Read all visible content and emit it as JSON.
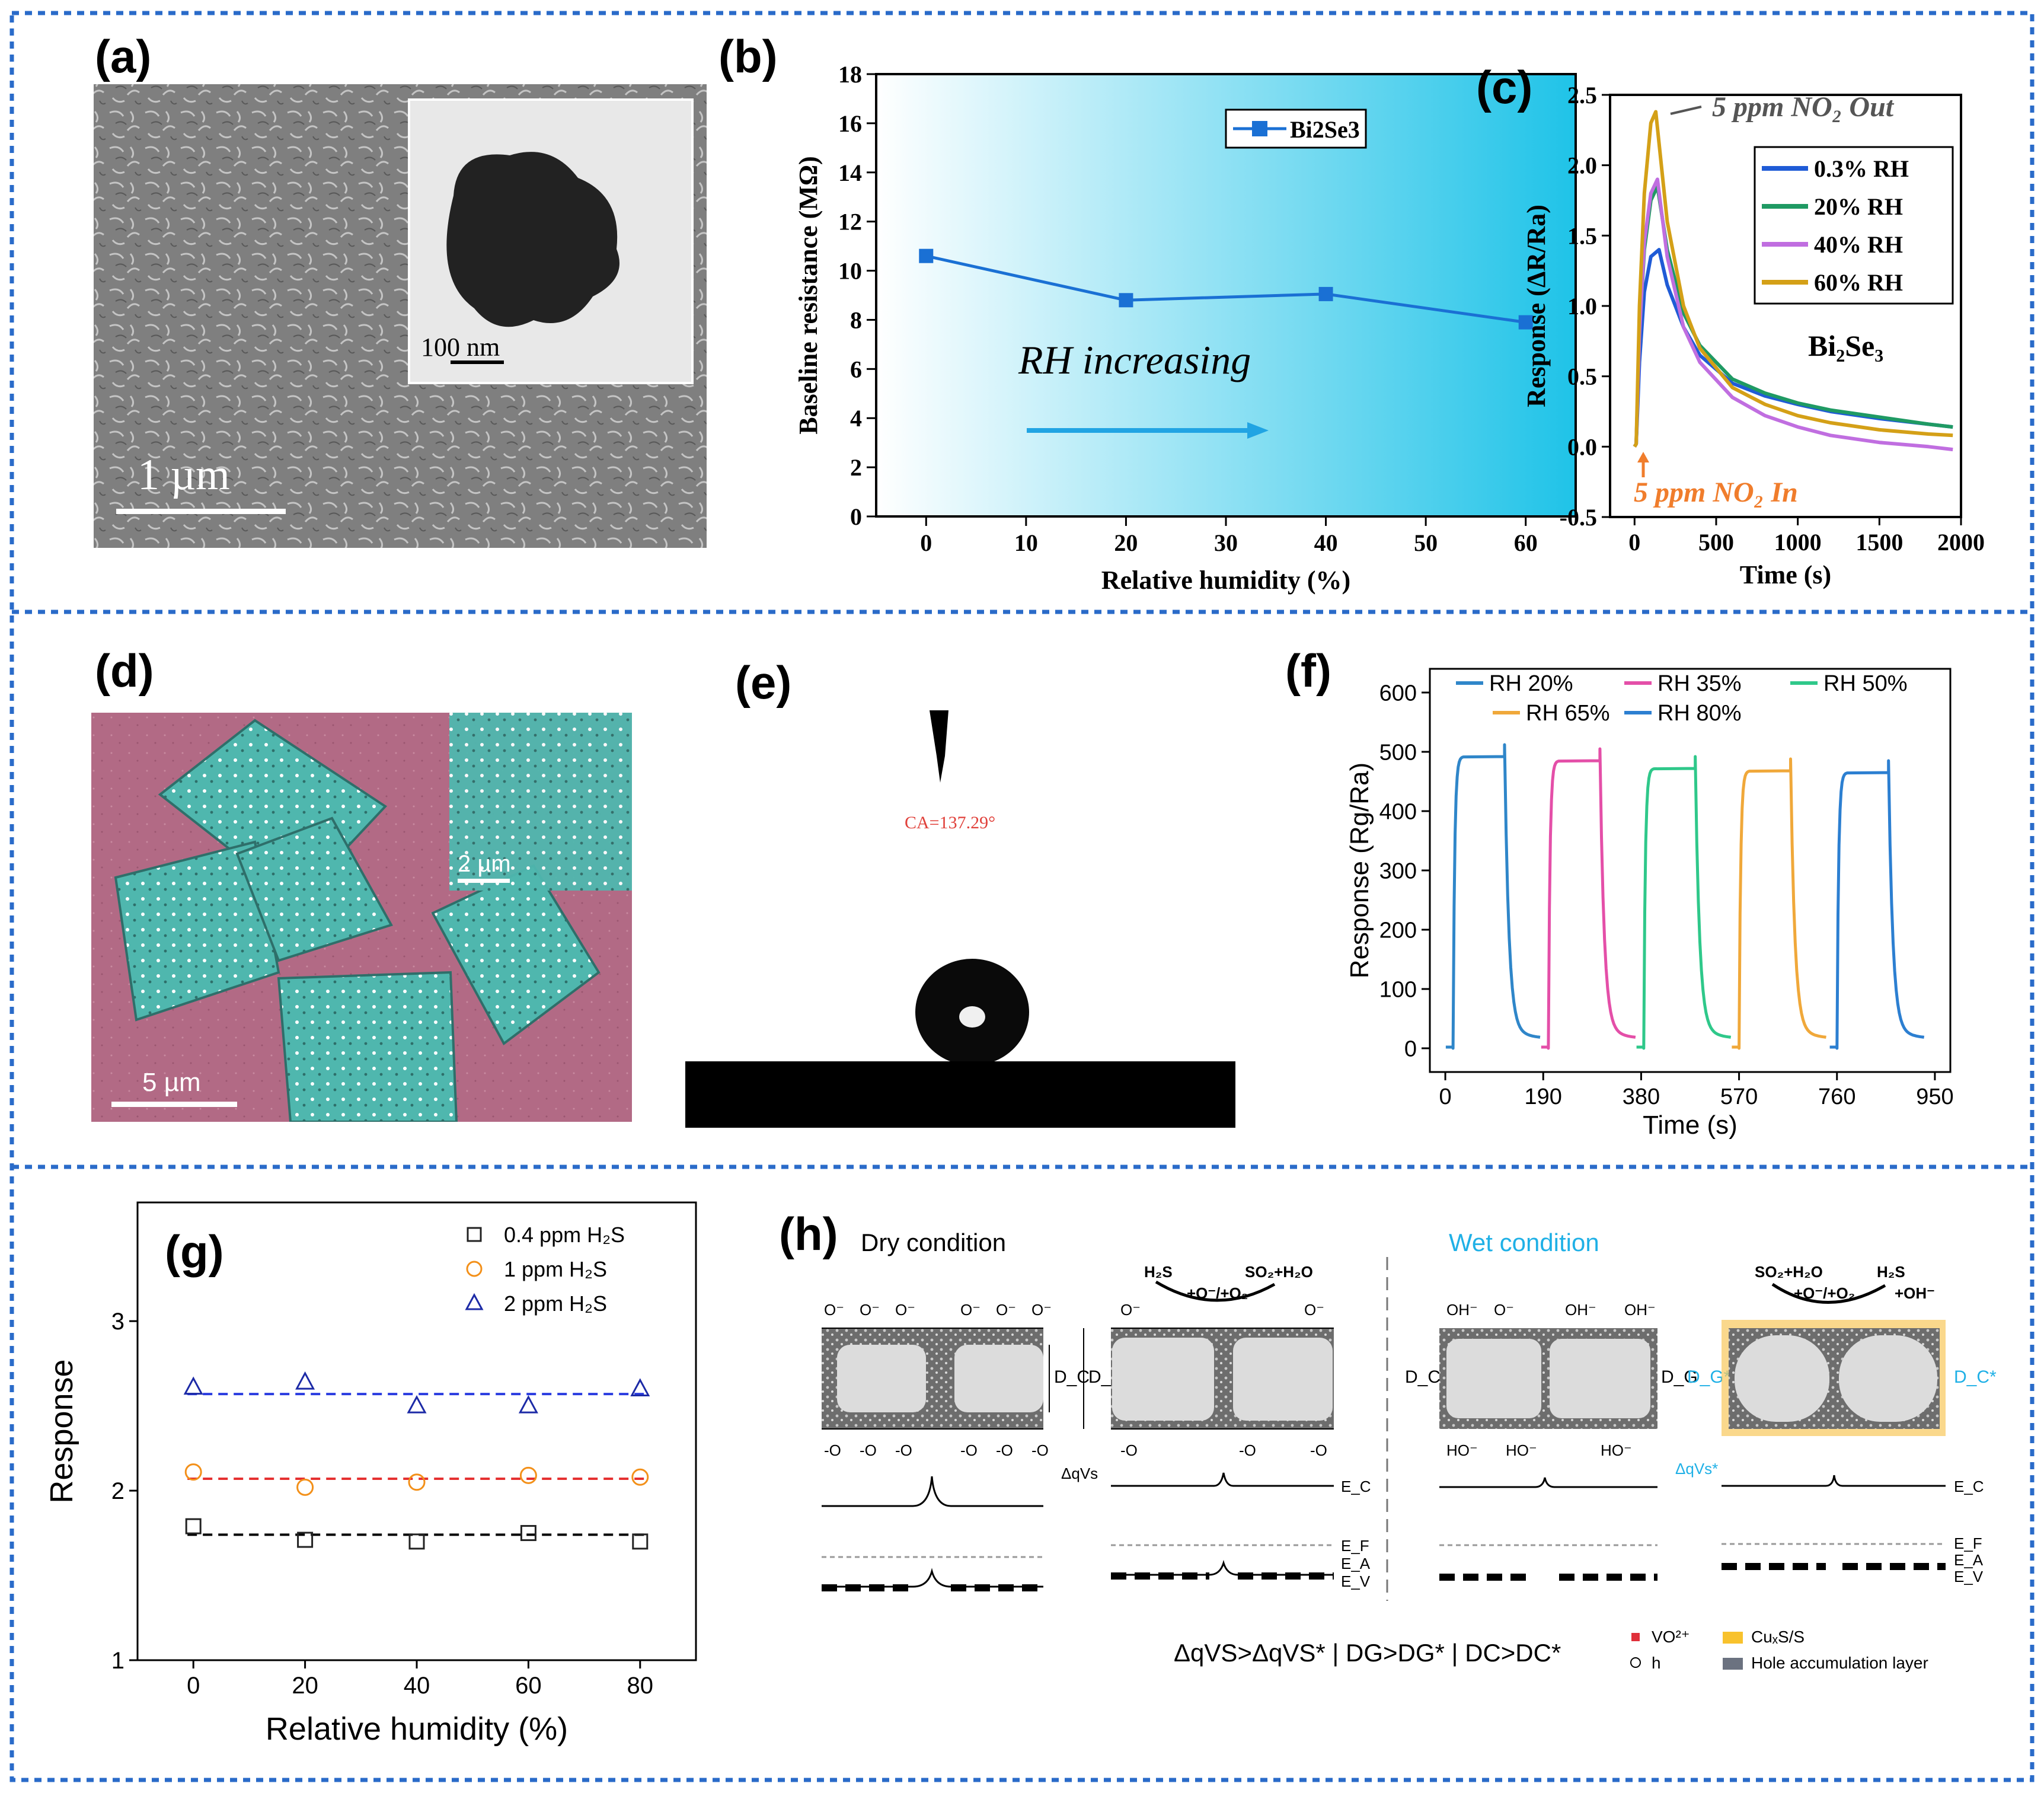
{
  "panels": {
    "a": {
      "label": "(a)",
      "scale_main": "1 µm",
      "scale_inset": "100 nm"
    },
    "b": {
      "label": "(b)",
      "annotation": "RH increasing"
    },
    "c": {
      "label": "(c)",
      "out_label": "5 ppm NO₂ Out",
      "in_label": "5 ppm NO₂ In",
      "material": "Bi₂Se₃"
    },
    "d": {
      "label": "(d)",
      "scale_main": "5 µm",
      "scale_inset": "2 µm"
    },
    "e": {
      "label": "(e)",
      "contact_angle": "CA=137.29°"
    },
    "f": {
      "label": "(f)"
    },
    "g": {
      "label": "(g)"
    },
    "h": {
      "label": "(h)",
      "dry_title": "Dry condition",
      "wet_title": "Wet condition",
      "h2s": "H₂S",
      "so2h2o": "SO₂+H₂O",
      "o_reaction": "+O⁻/+O₂",
      "plus_oh": "+OH⁻",
      "o_minus": "O⁻",
      "o_minus_b": "-O",
      "oh_minus": "OH⁻",
      "ho_minus": "HO⁻",
      "dc": "D_C",
      "dg": "D_G",
      "dg_star": "D_G*",
      "dc_star": "D_C*",
      "dqvs": "ΔqVs",
      "dqvs_star": "ΔqVs*",
      "ec": "E_C",
      "ef": "E_F",
      "ea": "E_A",
      "ev": "E_V",
      "relation": "ΔqVS>ΔqVS* | DG>DG* | DC>DC*",
      "legend_vo": "VO²⁺",
      "legend_h": "h",
      "legend_cus": "CuₓS/S",
      "legend_hole": "Hole accumulation layer"
    }
  },
  "chart_data": [
    {
      "panel": "b",
      "type": "line",
      "xlabel": "Relative humidity (%)",
      "ylabel": "Baseline resistance (MΩ)",
      "xlim": [
        -5,
        65
      ],
      "ylim": [
        0,
        18
      ],
      "xticks": [
        0,
        10,
        20,
        30,
        40,
        50,
        60
      ],
      "yticks": [
        0,
        2,
        4,
        6,
        8,
        10,
        12,
        14,
        16,
        18
      ],
      "series": [
        {
          "name": "Bi2Se3",
          "x": [
            0,
            20,
            40,
            60
          ],
          "y": [
            10.6,
            8.8,
            9.05,
            7.9
          ],
          "color": "#1a70d4"
        }
      ],
      "legend": "top-right"
    },
    {
      "panel": "c",
      "type": "line",
      "xlabel": "Time (s)",
      "ylabel": "Response (ΔR/Ra)",
      "xlim": [
        -150,
        2000
      ],
      "ylim": [
        -0.5,
        2.5
      ],
      "xticks": [
        0,
        500,
        1000,
        1500,
        2000
      ],
      "yticks": [
        -0.5,
        0.0,
        0.5,
        1.0,
        1.5,
        2.0,
        2.5
      ],
      "series": [
        {
          "name": "0.3% RH",
          "color": "#1f5bd6",
          "peak": 1.4,
          "x": [
            0,
            10,
            30,
            60,
            100,
            150,
            200,
            300,
            400,
            600,
            800,
            1000,
            1200,
            1500,
            1800,
            1950
          ],
          "y": [
            0,
            0.02,
            0.6,
            1.1,
            1.35,
            1.4,
            1.15,
            0.85,
            0.65,
            0.45,
            0.36,
            0.3,
            0.25,
            0.2,
            0.16,
            0.14
          ]
        },
        {
          "name": "20% RH",
          "color": "#1f9a63",
          "peak": 1.85,
          "x": [
            0,
            10,
            30,
            60,
            100,
            140,
            200,
            300,
            400,
            600,
            800,
            1000,
            1200,
            1500,
            1800,
            1950
          ],
          "y": [
            0,
            0.02,
            0.8,
            1.4,
            1.75,
            1.85,
            1.4,
            0.95,
            0.72,
            0.48,
            0.38,
            0.31,
            0.26,
            0.21,
            0.16,
            0.14
          ]
        },
        {
          "name": "40% RH",
          "color": "#c06ee0",
          "peak": 1.9,
          "x": [
            0,
            10,
            30,
            60,
            100,
            140,
            200,
            300,
            400,
            600,
            800,
            1000,
            1200,
            1500,
            1800,
            1950
          ],
          "y": [
            0,
            0.02,
            0.8,
            1.45,
            1.8,
            1.9,
            1.35,
            0.85,
            0.6,
            0.35,
            0.22,
            0.14,
            0.08,
            0.03,
            0.0,
            -0.02
          ]
        },
        {
          "name": "60% RH",
          "color": "#d4a017",
          "peak": 2.38,
          "x": [
            0,
            10,
            30,
            60,
            100,
            130,
            200,
            300,
            400,
            600,
            800,
            1000,
            1200,
            1500,
            1800,
            1950
          ],
          "y": [
            0,
            0.02,
            1.0,
            1.8,
            2.3,
            2.38,
            1.6,
            1.0,
            0.7,
            0.42,
            0.3,
            0.22,
            0.17,
            0.12,
            0.09,
            0.08
          ]
        }
      ],
      "legend": "top-right"
    },
    {
      "panel": "f",
      "type": "line",
      "xlabel": "Time (s)",
      "ylabel": "Response (Rg/Ra)",
      "xlim": [
        -30,
        980
      ],
      "ylim": [
        -40,
        640
      ],
      "xticks": [
        0,
        190,
        380,
        570,
        760,
        950
      ],
      "yticks": [
        0,
        100,
        200,
        300,
        400,
        500,
        600
      ],
      "series": [
        {
          "name": "RH 20%",
          "color": "#2f86c9",
          "start": 15,
          "end": 115,
          "peak": 492
        },
        {
          "name": "RH 35%",
          "color": "#e44fa8",
          "start": 200,
          "end": 300,
          "peak": 485
        },
        {
          "name": "RH 50%",
          "color": "#2fc88a",
          "start": 385,
          "end": 485,
          "peak": 472
        },
        {
          "name": "RH 65%",
          "color": "#f0a83a",
          "start": 570,
          "end": 670,
          "peak": 468
        },
        {
          "name": "RH 80%",
          "color": "#2c7fd1",
          "start": 760,
          "end": 860,
          "peak": 465
        }
      ],
      "legend": "top"
    },
    {
      "panel": "g",
      "type": "scatter",
      "xlabel": "Relative humidity (%)",
      "ylabel": "Response",
      "xlim": [
        -10,
        90
      ],
      "ylim": [
        1,
        3.7
      ],
      "xticks": [
        0,
        20,
        40,
        60,
        80
      ],
      "yticks": [
        1,
        2,
        3
      ],
      "series": [
        {
          "name": "0.4 ppm H₂S",
          "marker": "square",
          "color": "#222222",
          "fit": 1.74,
          "x": [
            0,
            20,
            40,
            60,
            80
          ],
          "y": [
            1.79,
            1.71,
            1.7,
            1.75,
            1.7
          ]
        },
        {
          "name": "1 ppm H₂S",
          "marker": "circle",
          "color": "#f39019",
          "fit": 2.07,
          "x": [
            0,
            20,
            40,
            60,
            80
          ],
          "y": [
            2.11,
            2.02,
            2.05,
            2.09,
            2.08
          ]
        },
        {
          "name": "2 ppm H₂S",
          "marker": "triangle",
          "color": "#1c2aa6",
          "fit": 2.57,
          "x": [
            0,
            20,
            40,
            60,
            80
          ],
          "y": [
            2.61,
            2.64,
            2.5,
            2.5,
            2.6
          ]
        }
      ],
      "legend": "top-right"
    }
  ]
}
